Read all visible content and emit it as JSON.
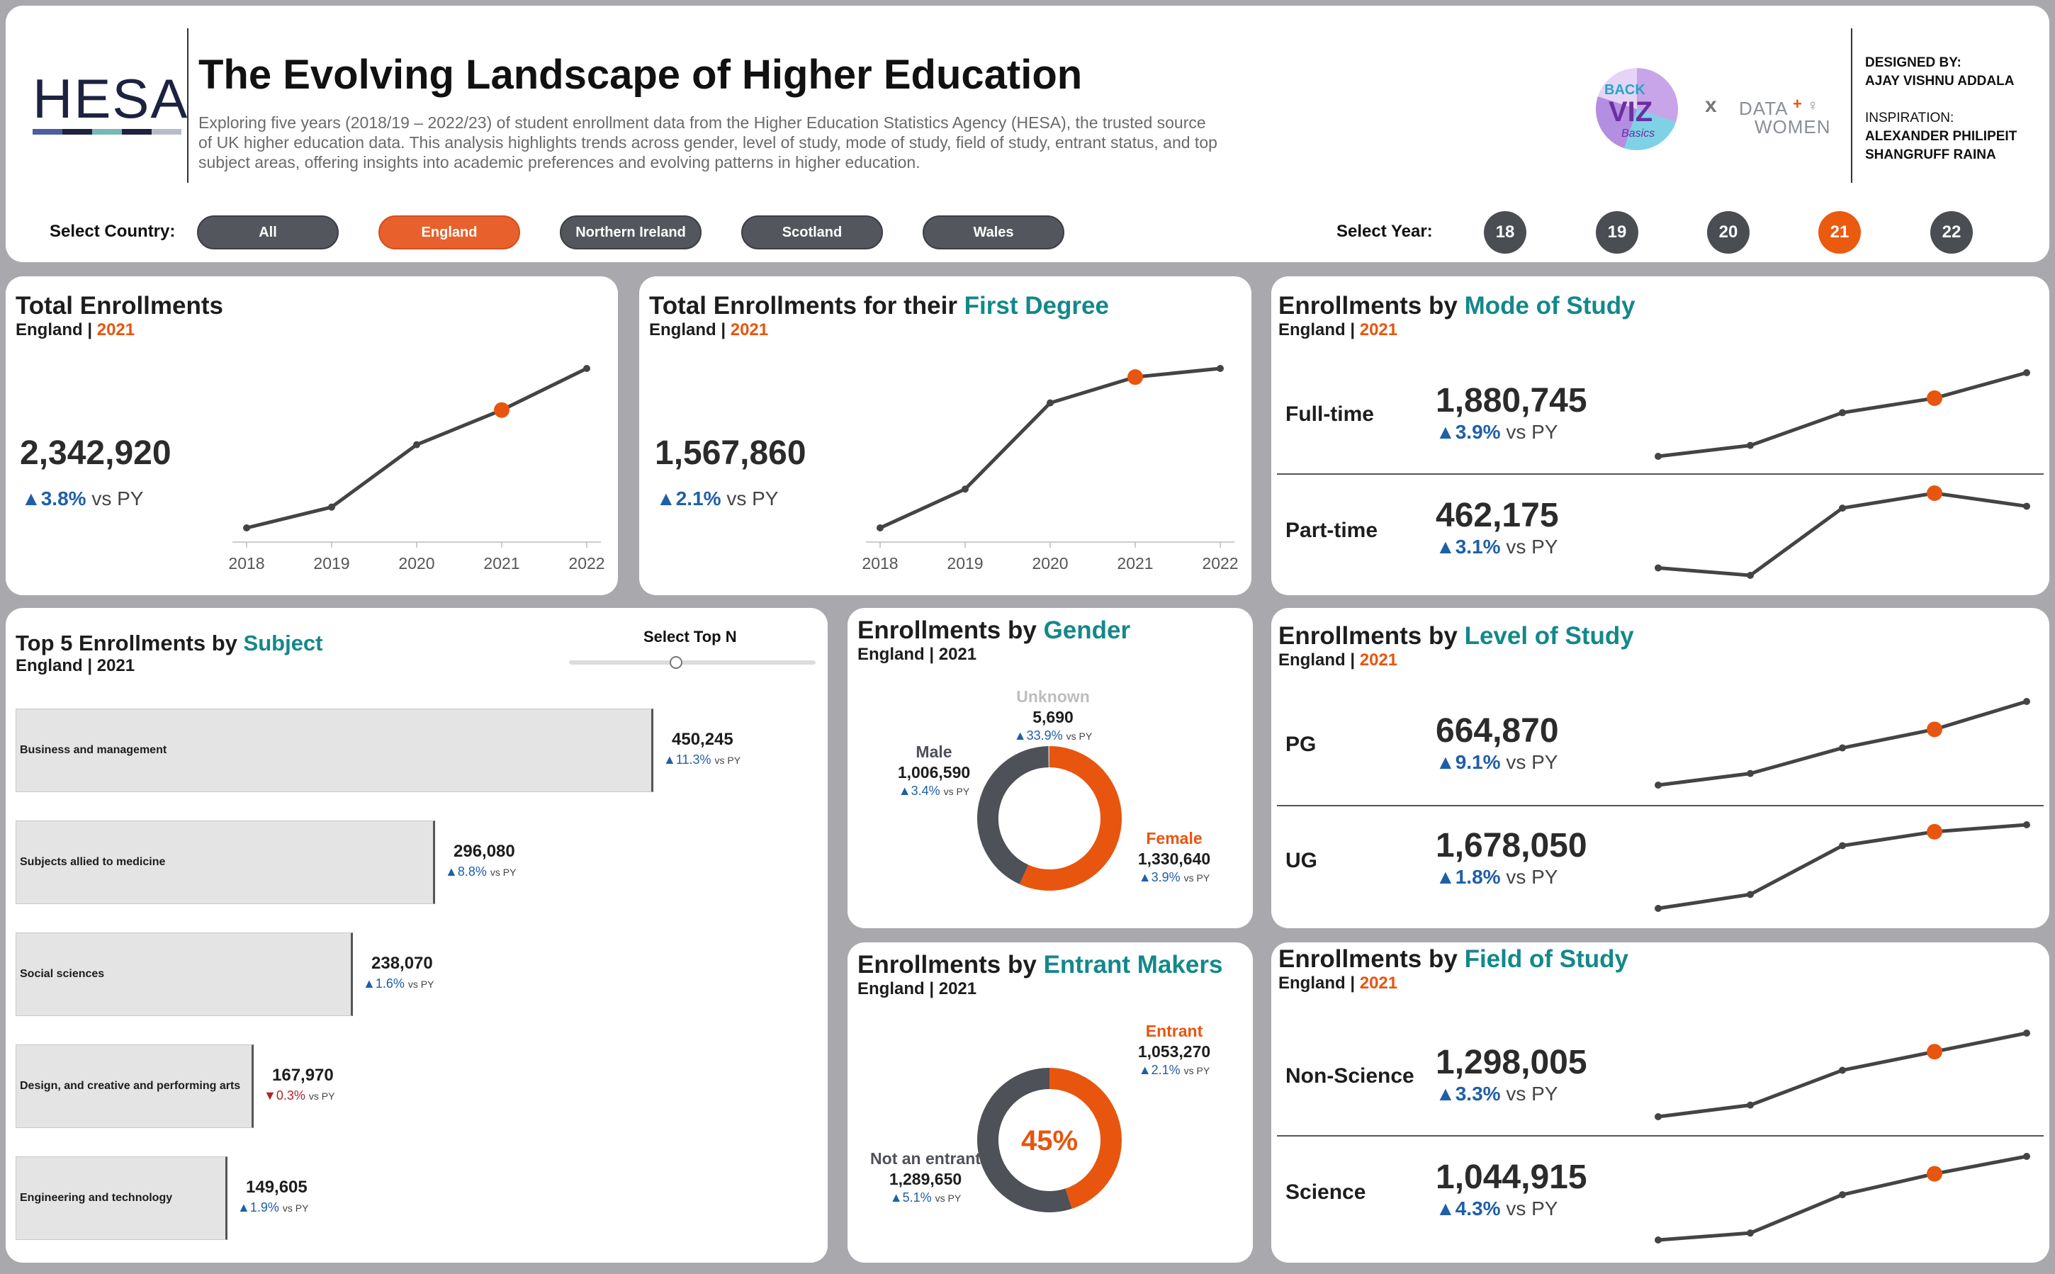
{
  "header": {
    "logo_text": "HESA",
    "title": "The Evolving Landscape of Higher Education",
    "description_1": "Exploring five years (2018/19 – 2022/23) of student enrollment data from the Higher Education Statistics Agency (HESA), the trusted source",
    "description_2": "of UK higher education data. This analysis highlights trends across gender, level of study, mode of study, field of study, entrant status, and top",
    "description_3": "subject areas, offering insights into academic preferences and evolving patterns in higher education.",
    "partner_x": "x",
    "credits_designed_label": "DESIGNED BY:",
    "credits_designed_name": "AJAY VISHNU ADDALA",
    "credits_inspiration_label": "INSPIRATION:",
    "credits_inspiration_1": "ALEXANDER PHILIPEIT",
    "credits_inspiration_2": "SHANGRUFF RAINA",
    "country_label": "Select Country:",
    "countries": [
      "All",
      "England",
      "Northern Ireland",
      "Scotland",
      "Wales"
    ],
    "active_country": "England",
    "year_label": "Select Year:",
    "years": [
      "18",
      "19",
      "20",
      "21",
      "22"
    ],
    "active_year": "21"
  },
  "subtitle": {
    "country": "England",
    "sep": " | ",
    "year": "2021"
  },
  "vs_py": "vs PY",
  "total": {
    "title": "Total Enrollments",
    "value": "2,342,920",
    "change": "▲3.8%",
    "chart_data": {
      "type": "line",
      "x": [
        "2018",
        "2019",
        "2020",
        "2021",
        "2022"
      ],
      "values": [
        2095000,
        2125000,
        2215000,
        2265000,
        2325000
      ],
      "highlight": "2021"
    }
  },
  "first_degree": {
    "title_a": "Total Enrollments for their ",
    "title_b": "First Degree",
    "value": "1,567,860",
    "change": "▲2.1%",
    "chart_data": {
      "type": "line",
      "x": [
        "2018",
        "2019",
        "2020",
        "2021",
        "2022"
      ],
      "values": [
        1390000,
        1435000,
        1535000,
        1565000,
        1575000
      ],
      "highlight": "2021"
    }
  },
  "mode": {
    "title_a": "Enrollments by ",
    "title_b": "Mode of Study",
    "rows": [
      {
        "label": "Full-time",
        "value": "1,880,745",
        "change": "▲3.9%",
        "chart_data": {
          "type": "line",
          "values": [
            1650000,
            1680000,
            1770000,
            1810000,
            1880000
          ]
        }
      },
      {
        "label": "Part-time",
        "value": "462,175",
        "change": "▲3.1%",
        "chart_data": {
          "type": "line",
          "values": [
            440000,
            436000,
            472000,
            480000,
            473000
          ]
        }
      }
    ]
  },
  "subjects": {
    "title_a": "Top 5 Enrollments by ",
    "title_b": "Subject",
    "slider_label": "Select Top N",
    "chart_data": {
      "type": "bar",
      "categories": [
        "Business and management",
        "Subjects allied to medicine",
        "Social sciences",
        "Design, and creative and performing arts",
        "Engineering and technology"
      ],
      "values": [
        450245,
        296080,
        238070,
        167970,
        149605
      ],
      "labels": [
        "450,245",
        "296,080",
        "238,070",
        "167,970",
        "149,605"
      ],
      "changes": [
        "▲11.3%",
        "▲8.8%",
        "▲1.6%",
        "▼0.3%",
        "▲1.9%"
      ],
      "negative": [
        false,
        false,
        false,
        true,
        false
      ]
    }
  },
  "gender": {
    "title_a": "Enrollments by ",
    "title_b": "Gender",
    "chart_data": {
      "type": "pie",
      "segments": [
        {
          "name": "Female",
          "value": 1330640,
          "label": "1,330,640",
          "change": "▲3.9%",
          "color": "#e8550e"
        },
        {
          "name": "Male",
          "value": 1006590,
          "label": "1,006,590",
          "change": "▲3.4%",
          "color": "#4e5157"
        },
        {
          "name": "Unknown",
          "value": 5690,
          "label": "5,690",
          "change": "▲33.9%",
          "color": "#cfcfcf"
        }
      ]
    }
  },
  "entrant": {
    "title_a": "Enrollments by ",
    "title_b": "Entrant Makers",
    "center_label": "45%",
    "chart_data": {
      "type": "pie",
      "segments": [
        {
          "name": "Entrant",
          "value": 1053270,
          "label": "1,053,270",
          "change": "▲2.1%",
          "color": "#e8550e"
        },
        {
          "name": "Not an entrant",
          "value": 1289650,
          "label": "1,289,650",
          "change": "▲5.1%",
          "color": "#4e5157"
        }
      ]
    }
  },
  "level": {
    "title_a": "Enrollments by ",
    "title_b": "Level of Study",
    "rows": [
      {
        "label": "PG",
        "value": "664,870",
        "change": "▲9.1%",
        "chart_data": {
          "type": "line",
          "values": [
            520000,
            545000,
            600000,
            640000,
            700000
          ]
        }
      },
      {
        "label": "UG",
        "value": "1,678,050",
        "change": "▲1.8%",
        "chart_data": {
          "type": "line",
          "values": [
            1570000,
            1590000,
            1660000,
            1680000,
            1690000
          ]
        }
      }
    ]
  },
  "field": {
    "title_a": "Enrollments by ",
    "title_b": "Field of Study",
    "rows": [
      {
        "label": "Non-Science",
        "value": "1,298,005",
        "change": "▲3.3%",
        "chart_data": {
          "type": "line",
          "values": [
            1150000,
            1175000,
            1250000,
            1290000,
            1330000
          ]
        }
      },
      {
        "label": "Science",
        "value": "1,044,915",
        "change": "▲4.3%",
        "chart_data": {
          "type": "line",
          "values": [
            950000,
            960000,
            1015000,
            1045000,
            1070000
          ]
        }
      }
    ]
  },
  "colors": {
    "accent_orange": "#e8550e",
    "teal": "#13888a",
    "positive_blue": "#1f5fa8",
    "negative_red": "#b0242a",
    "line": "#444444"
  }
}
